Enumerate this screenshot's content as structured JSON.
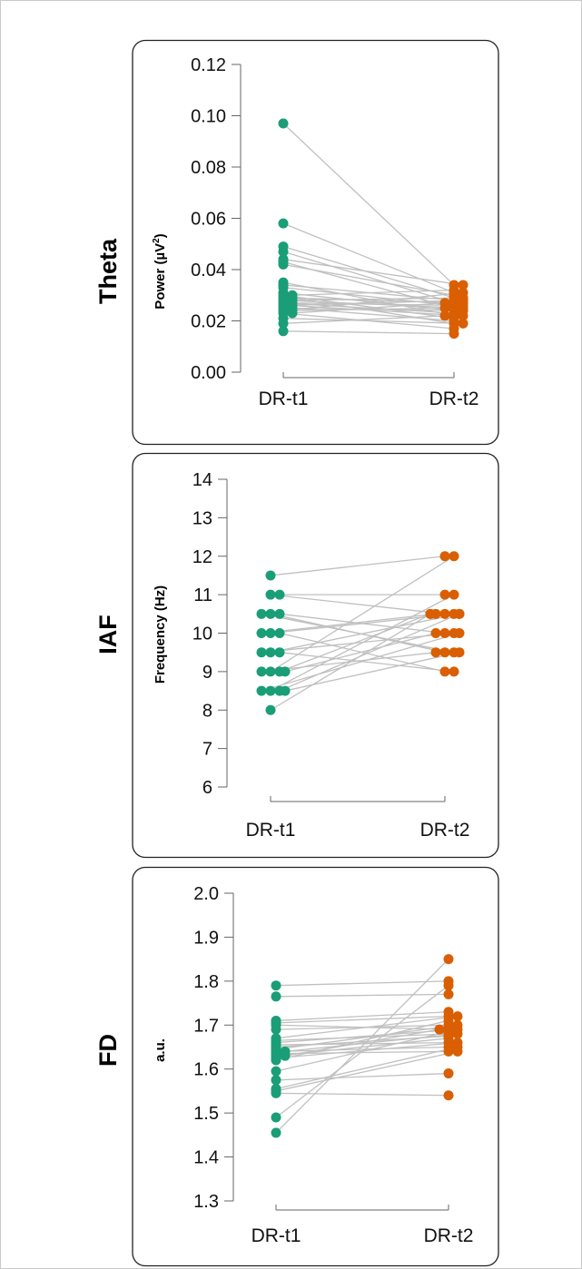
{
  "colors": {
    "t1": "#1a9e77",
    "t2": "#d95f02",
    "line": "#c0c0c0",
    "axis": "#666666"
  },
  "chart_data": [
    {
      "type": "scatter",
      "row_label": "Theta",
      "ylabel": "Power (µV²)",
      "ylabel_base": "Power (µV",
      "ylabel_sup": "2",
      "ylabel_close": ")",
      "categories": [
        "DR-t1",
        "DR-t2"
      ],
      "ylim": [
        0,
        0.12
      ],
      "yticks": [
        "0.00",
        "0.02",
        "0.04",
        "0.06",
        "0.08",
        "0.10",
        "0.12"
      ],
      "pairs": [
        [
          0.097,
          0.034
        ],
        [
          0.058,
          0.031
        ],
        [
          0.049,
          0.029
        ],
        [
          0.047,
          0.027
        ],
        [
          0.044,
          0.034
        ],
        [
          0.043,
          0.025
        ],
        [
          0.042,
          0.03
        ],
        [
          0.035,
          0.022
        ],
        [
          0.034,
          0.028
        ],
        [
          0.033,
          0.026
        ],
        [
          0.031,
          0.024
        ],
        [
          0.03,
          0.021
        ],
        [
          0.03,
          0.032
        ],
        [
          0.029,
          0.027
        ],
        [
          0.029,
          0.019
        ],
        [
          0.028,
          0.025
        ],
        [
          0.028,
          0.029
        ],
        [
          0.027,
          0.023
        ],
        [
          0.027,
          0.026
        ],
        [
          0.026,
          0.028
        ],
        [
          0.026,
          0.022
        ],
        [
          0.025,
          0.024
        ],
        [
          0.025,
          0.02
        ],
        [
          0.024,
          0.031
        ],
        [
          0.024,
          0.025
        ],
        [
          0.023,
          0.017
        ],
        [
          0.023,
          0.027
        ],
        [
          0.021,
          0.019
        ],
        [
          0.019,
          0.022
        ],
        [
          0.016,
          0.015
        ]
      ]
    },
    {
      "type": "scatter",
      "row_label": "IAF",
      "ylabel": "Frequency (Hz)",
      "categories": [
        "DR-t1",
        "DR-t2"
      ],
      "ylim": [
        6,
        14
      ],
      "yticks": [
        "6",
        "7",
        "8",
        "9",
        "10",
        "11",
        "12",
        "13",
        "14"
      ],
      "pairs": [
        [
          11.5,
          12.0
        ],
        [
          11.0,
          10.5
        ],
        [
          11.0,
          11.0
        ],
        [
          10.5,
          9.5
        ],
        [
          10.5,
          10.0
        ],
        [
          10.5,
          9.5
        ],
        [
          10.0,
          10.5
        ],
        [
          10.0,
          9.0
        ],
        [
          10.0,
          10.5
        ],
        [
          9.5,
          10.5
        ],
        [
          9.5,
          9.0
        ],
        [
          9.5,
          10.0
        ],
        [
          9.0,
          12.0
        ],
        [
          9.0,
          10.5
        ],
        [
          9.0,
          9.5
        ],
        [
          9.0,
          10.0
        ],
        [
          8.5,
          11.0
        ],
        [
          8.5,
          10.5
        ],
        [
          8.5,
          10.0
        ],
        [
          8.5,
          9.5
        ],
        [
          8.0,
          10.5
        ]
      ]
    },
    {
      "type": "scatter",
      "row_label": "FD",
      "ylabel": "a.u.",
      "categories": [
        "DR-t1",
        "DR-t2"
      ],
      "ylim": [
        1.3,
        2.0
      ],
      "yticks": [
        "1.3",
        "1.4",
        "1.5",
        "1.6",
        "1.7",
        "1.8",
        "1.9",
        "2.0"
      ],
      "pairs": [
        [
          1.79,
          1.8
        ],
        [
          1.765,
          1.77
        ],
        [
          1.71,
          1.73
        ],
        [
          1.705,
          1.72
        ],
        [
          1.7,
          1.69
        ],
        [
          1.69,
          1.7
        ],
        [
          1.67,
          1.72
        ],
        [
          1.665,
          1.68
        ],
        [
          1.66,
          1.69
        ],
        [
          1.655,
          1.66
        ],
        [
          1.65,
          1.675
        ],
        [
          1.645,
          1.7
        ],
        [
          1.64,
          1.65
        ],
        [
          1.64,
          1.68
        ],
        [
          1.635,
          1.64
        ],
        [
          1.63,
          1.67
        ],
        [
          1.63,
          1.69
        ],
        [
          1.625,
          1.66
        ],
        [
          1.62,
          1.71
        ],
        [
          1.595,
          1.685
        ],
        [
          1.575,
          1.59
        ],
        [
          1.555,
          1.65
        ],
        [
          1.55,
          1.64
        ],
        [
          1.545,
          1.54
        ],
        [
          1.49,
          1.79
        ],
        [
          1.455,
          1.85
        ]
      ]
    }
  ]
}
